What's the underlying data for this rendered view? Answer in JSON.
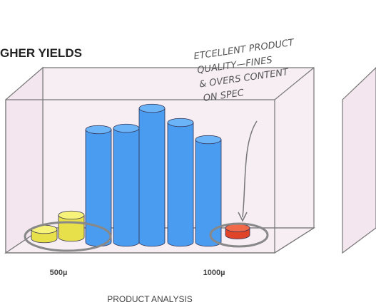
{
  "header": {
    "title": "GHER YIELDS"
  },
  "annotation": {
    "lines": [
      "ETCELLENT PRODUCT",
      "QUALITY—FINES",
      "& OVERS CONTENT",
      "ON SPEC"
    ]
  },
  "axis": {
    "labels": [
      "500µ",
      "1000µ"
    ],
    "title": "PRODUCT ANALYSIS"
  }
}
